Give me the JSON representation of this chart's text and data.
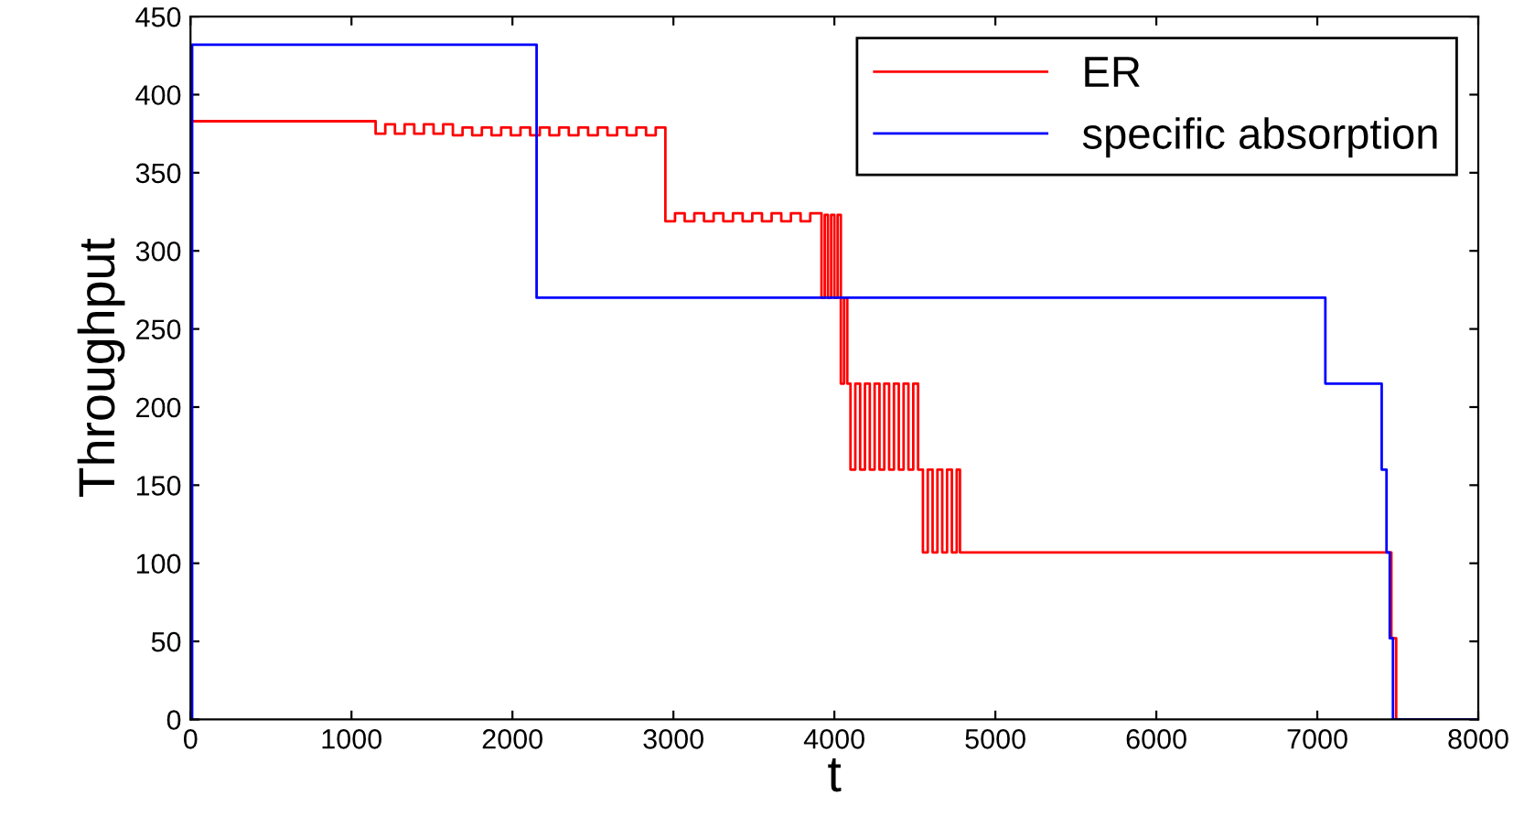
{
  "chart_data": {
    "type": "step",
    "xlabel": "t",
    "ylabel": "Throughput",
    "xlim": [
      0,
      8000
    ],
    "xticks": [
      0,
      1000,
      2000,
      3000,
      4000,
      5000,
      6000,
      7000,
      8000
    ],
    "ylim": [
      0,
      450
    ],
    "yticks": [
      0,
      50,
      100,
      150,
      200,
      250,
      300,
      350,
      400,
      450
    ],
    "grid": false,
    "legend": "top right",
    "series": [
      {
        "name": "ER",
        "color": "#ff0000",
        "x": [
          0,
          1150,
          1210,
          1270,
          1330,
          1390,
          1450,
          1510,
          1570,
          1630,
          1690,
          1750,
          1810,
          1870,
          1930,
          1990,
          2050,
          2110,
          2170,
          2230,
          2290,
          2350,
          2410,
          2470,
          2530,
          2590,
          2650,
          2710,
          2770,
          2830,
          2890,
          2950,
          3010,
          3070,
          3130,
          3190,
          3250,
          3310,
          3370,
          3430,
          3490,
          3550,
          3610,
          3670,
          3730,
          3790,
          3850,
          3920,
          3940,
          3960,
          3980,
          4000,
          4020,
          4040,
          4060,
          4080,
          4100,
          4130,
          4160,
          4190,
          4220,
          4250,
          4280,
          4310,
          4340,
          4370,
          4400,
          4430,
          4460,
          4490,
          4520,
          4550,
          4580,
          4610,
          4640,
          4670,
          4700,
          4730,
          4760,
          4780,
          7460,
          7490,
          8000
        ],
        "values": [
          383,
          375,
          381,
          375,
          381,
          375,
          381,
          375,
          381,
          374,
          379,
          374,
          379,
          374,
          379,
          374,
          379,
          374,
          379,
          374,
          379,
          374,
          379,
          374,
          379,
          374,
          379,
          374,
          379,
          374,
          379,
          319,
          324,
          319,
          324,
          319,
          324,
          319,
          324,
          319,
          324,
          319,
          324,
          319,
          324,
          319,
          324,
          270,
          323,
          270,
          323,
          270,
          323,
          215,
          270,
          215,
          160,
          215,
          160,
          215,
          160,
          215,
          160,
          215,
          160,
          215,
          160,
          215,
          160,
          215,
          160,
          107,
          160,
          107,
          160,
          107,
          160,
          107,
          160,
          107,
          52,
          0,
          0
        ]
      },
      {
        "name": "specific absorption",
        "color": "#0000ff",
        "x": [
          0,
          10,
          2150,
          7050,
          7400,
          7430,
          7450,
          7470,
          8000
        ],
        "values": [
          0,
          432,
          270,
          215,
          160,
          107,
          52,
          0,
          0
        ]
      }
    ]
  }
}
